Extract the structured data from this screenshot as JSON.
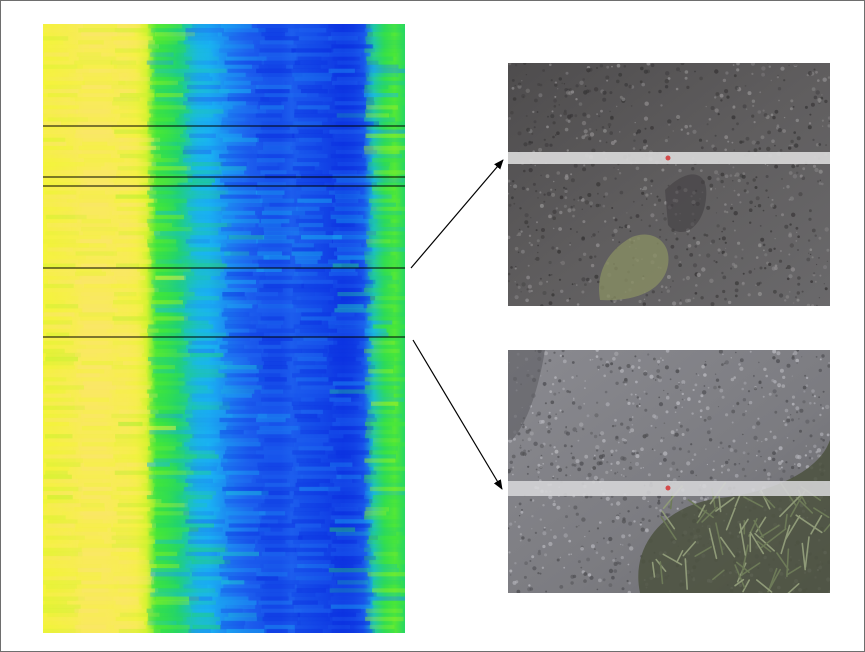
{
  "figure": {
    "heatmap": {
      "colormap": [
        "#0b2fe0",
        "#1f66f0",
        "#19b6f2",
        "#22d46a",
        "#3fe63a",
        "#a8f024",
        "#f4f43a",
        "#fbe46e"
      ],
      "column_profile": [
        0.86,
        0.88,
        0.9,
        0.92,
        0.95,
        0.95,
        0.95,
        0.93,
        0.94,
        0.9,
        0.8,
        0.58,
        0.52,
        0.42,
        0.36,
        0.3,
        0.28,
        0.24,
        0.2,
        0.16,
        0.12,
        0.1,
        0.08,
        0.08,
        0.12,
        0.1,
        0.08,
        0.06,
        0.04,
        0.02,
        0.04,
        0.1,
        0.32,
        0.5,
        0.6,
        0.45
      ]
    },
    "band_lines": {
      "color": "#000000"
    },
    "arrows": {
      "color": "#000000"
    },
    "photos": [
      {
        "name": "ground-photo-top",
        "surface_color": "#5c5a5b",
        "stripe_color": "#d8d8d8"
      },
      {
        "name": "ground-photo-bottom",
        "surface_color": "#7d7d82",
        "stripe_color": "#d9d9dc"
      }
    ]
  }
}
